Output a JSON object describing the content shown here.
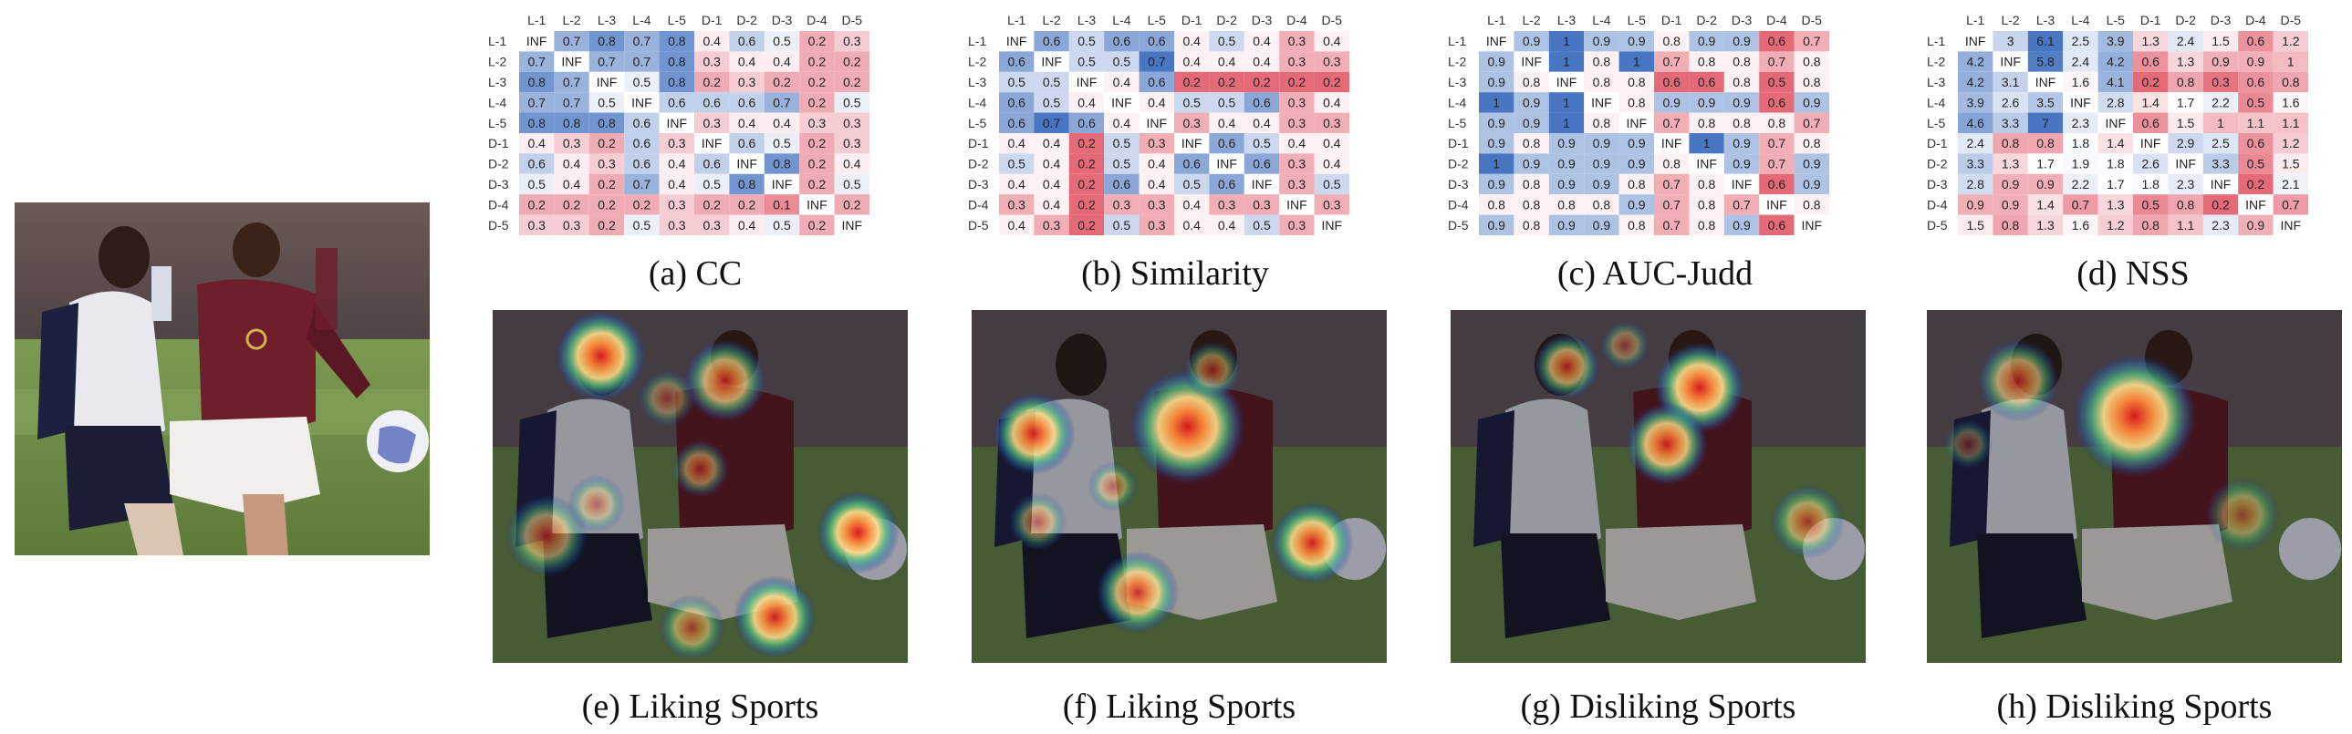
{
  "labels": [
    "L-1",
    "L-2",
    "L-3",
    "L-4",
    "L-5",
    "D-1",
    "D-2",
    "D-3",
    "D-4",
    "D-5"
  ],
  "scales": {
    "CC": {
      "lo": 0.0,
      "mid": 0.45,
      "hi": 0.9
    },
    "Similarity": {
      "lo": 0.2,
      "mid": 0.42,
      "hi": 0.7
    },
    "AUC-Judd": {
      "lo": 0.6,
      "mid": 0.82,
      "hi": 1.0
    },
    "NSS": {
      "lo": 0.2,
      "mid": 1.7,
      "hi": 6.0
    }
  },
  "colors": {
    "high": "#3f6fbf",
    "mid": "#ffffff",
    "low": "#e05060",
    "diag": "#ffffff"
  },
  "matrices": [
    {
      "caption": "(a) CC",
      "metric": "CC",
      "cells": [
        [
          "INF",
          "0.7",
          "0.8",
          "0.7",
          "0.8",
          "0.4",
          "0.6",
          "0.5",
          "0.2",
          "0.3"
        ],
        [
          "0.7",
          "INF",
          "0.7",
          "0.7",
          "0.8",
          "0.3",
          "0.4",
          "0.4",
          "0.2",
          "0.2"
        ],
        [
          "0.8",
          "0.7",
          "INF",
          "0.5",
          "0.8",
          "0.2",
          "0.3",
          "0.2",
          "0.2",
          "0.2"
        ],
        [
          "0.7",
          "0.7",
          "0.5",
          "INF",
          "0.6",
          "0.6",
          "0.6",
          "0.7",
          "0.2",
          "0.5"
        ],
        [
          "0.8",
          "0.8",
          "0.8",
          "0.6",
          "INF",
          "0.3",
          "0.4",
          "0.4",
          "0.3",
          "0.3"
        ],
        [
          "0.4",
          "0.3",
          "0.2",
          "0.6",
          "0.3",
          "INF",
          "0.6",
          "0.5",
          "0.2",
          "0.3"
        ],
        [
          "0.6",
          "0.4",
          "0.3",
          "0.6",
          "0.4",
          "0.6",
          "INF",
          "0.8",
          "0.2",
          "0.4"
        ],
        [
          "0.5",
          "0.4",
          "0.2",
          "0.7",
          "0.4",
          "0.5",
          "0.8",
          "INF",
          "0.2",
          "0.5"
        ],
        [
          "0.2",
          "0.2",
          "0.2",
          "0.2",
          "0.3",
          "0.2",
          "0.2",
          "0.1",
          "INF",
          "0.2"
        ],
        [
          "0.3",
          "0.3",
          "0.2",
          "0.5",
          "0.3",
          "0.3",
          "0.4",
          "0.5",
          "0.2",
          "INF"
        ]
      ]
    },
    {
      "caption": "(b) Similarity",
      "metric": "Similarity",
      "cells": [
        [
          "INF",
          "0.6",
          "0.5",
          "0.6",
          "0.6",
          "0.4",
          "0.5",
          "0.4",
          "0.3",
          "0.4"
        ],
        [
          "0.6",
          "INF",
          "0.5",
          "0.5",
          "0.7",
          "0.4",
          "0.4",
          "0.4",
          "0.3",
          "0.3"
        ],
        [
          "0.5",
          "0.5",
          "INF",
          "0.4",
          "0.6",
          "0.2",
          "0.2",
          "0.2",
          "0.2",
          "0.2"
        ],
        [
          "0.6",
          "0.5",
          "0.4",
          "INF",
          "0.4",
          "0.5",
          "0.5",
          "0.6",
          "0.3",
          "0.4"
        ],
        [
          "0.6",
          "0.7",
          "0.6",
          "0.4",
          "INF",
          "0.3",
          "0.4",
          "0.4",
          "0.3",
          "0.3"
        ],
        [
          "0.4",
          "0.4",
          "0.2",
          "0.5",
          "0.3",
          "INF",
          "0.6",
          "0.5",
          "0.4",
          "0.4"
        ],
        [
          "0.5",
          "0.4",
          "0.2",
          "0.5",
          "0.4",
          "0.6",
          "INF",
          "0.6",
          "0.3",
          "0.4"
        ],
        [
          "0.4",
          "0.4",
          "0.2",
          "0.6",
          "0.4",
          "0.5",
          "0.6",
          "INF",
          "0.3",
          "0.5"
        ],
        [
          "0.3",
          "0.4",
          "0.2",
          "0.3",
          "0.3",
          "0.4",
          "0.3",
          "0.3",
          "INF",
          "0.3"
        ],
        [
          "0.4",
          "0.3",
          "0.2",
          "0.5",
          "0.3",
          "0.4",
          "0.4",
          "0.5",
          "0.3",
          "INF"
        ]
      ]
    },
    {
      "caption": "(c) AUC-Judd",
      "metric": "AUC-Judd",
      "cells": [
        [
          "INF",
          "0.9",
          "1",
          "0.9",
          "0.9",
          "0.8",
          "0.9",
          "0.9",
          "0.6",
          "0.7"
        ],
        [
          "0.9",
          "INF",
          "1",
          "0.8",
          "1",
          "0.7",
          "0.8",
          "0.8",
          "0.7",
          "0.8"
        ],
        [
          "0.9",
          "0.8",
          "INF",
          "0.8",
          "0.8",
          "0.6",
          "0.6",
          "0.8",
          "0.5",
          "0.8"
        ],
        [
          "1",
          "0.9",
          "1",
          "INF",
          "0.8",
          "0.9",
          "0.9",
          "0.9",
          "0.6",
          "0.9"
        ],
        [
          "0.9",
          "0.9",
          "1",
          "0.8",
          "INF",
          "0.7",
          "0.8",
          "0.8",
          "0.8",
          "0.7"
        ],
        [
          "0.9",
          "0.8",
          "0.9",
          "0.9",
          "0.9",
          "INF",
          "1",
          "0.9",
          "0.7",
          "0.8"
        ],
        [
          "1",
          "0.9",
          "0.9",
          "0.9",
          "0.9",
          "0.8",
          "INF",
          "0.9",
          "0.7",
          "0.9"
        ],
        [
          "0.9",
          "0.8",
          "0.9",
          "0.9",
          "0.8",
          "0.7",
          "0.8",
          "INF",
          "0.6",
          "0.9"
        ],
        [
          "0.8",
          "0.8",
          "0.8",
          "0.8",
          "0.9",
          "0.7",
          "0.8",
          "0.7",
          "INF",
          "0.8"
        ],
        [
          "0.9",
          "0.8",
          "0.9",
          "0.9",
          "0.8",
          "0.7",
          "0.8",
          "0.9",
          "0.6",
          "INF"
        ]
      ]
    },
    {
      "caption": "(d) NSS",
      "metric": "NSS",
      "cells": [
        [
          "INF",
          "3",
          "6.1",
          "2.5",
          "3.9",
          "1.3",
          "2.4",
          "1.5",
          "0.6",
          "1.2"
        ],
        [
          "4.2",
          "INF",
          "5.8",
          "2.4",
          "4.2",
          "0.6",
          "1.3",
          "0.9",
          "0.9",
          "1"
        ],
        [
          "4.2",
          "3.1",
          "INF",
          "1.6",
          "4.1",
          "0.2",
          "0.8",
          "0.3",
          "0.6",
          "0.8"
        ],
        [
          "3.9",
          "2.6",
          "3.5",
          "INF",
          "2.8",
          "1.4",
          "1.7",
          "2.2",
          "0.5",
          "1.6"
        ],
        [
          "4.6",
          "3.3",
          "7",
          "2.3",
          "INF",
          "0.6",
          "1.5",
          "1",
          "1.1",
          "1.1"
        ],
        [
          "2.4",
          "0.8",
          "0.8",
          "1.8",
          "1.4",
          "INF",
          "2.9",
          "2.5",
          "0.6",
          "1.2"
        ],
        [
          "3.3",
          "1.3",
          "1.7",
          "1.9",
          "1.8",
          "2.6",
          "INF",
          "3.3",
          "0.5",
          "1.5"
        ],
        [
          "2.8",
          "0.9",
          "0.9",
          "2.2",
          "1.7",
          "1.8",
          "2.3",
          "INF",
          "0.2",
          "2.1"
        ],
        [
          "0.9",
          "0.9",
          "1.4",
          "0.7",
          "1.3",
          "0.5",
          "0.8",
          "0.2",
          "INF",
          "0.7"
        ],
        [
          "1.5",
          "0.8",
          "1.3",
          "1.6",
          "1.2",
          "0.8",
          "1.1",
          "2.3",
          "0.9",
          "INF"
        ]
      ]
    }
  ],
  "heatmaps": [
    {
      "caption": "(e) Liking Sports",
      "spots": [
        [
          0.26,
          0.13,
          0.11,
          1.0
        ],
        [
          0.56,
          0.2,
          0.1,
          0.75
        ],
        [
          0.88,
          0.63,
          0.1,
          1.0
        ],
        [
          0.68,
          0.87,
          0.1,
          0.95
        ],
        [
          0.13,
          0.64,
          0.1,
          0.6
        ],
        [
          0.5,
          0.45,
          0.07,
          0.5
        ],
        [
          0.25,
          0.55,
          0.07,
          0.45
        ],
        [
          0.48,
          0.9,
          0.08,
          0.55
        ],
        [
          0.42,
          0.25,
          0.07,
          0.4
        ]
      ]
    },
    {
      "caption": "(f) Liking Sports",
      "spots": [
        [
          0.52,
          0.33,
          0.14,
          1.0
        ],
        [
          0.15,
          0.35,
          0.1,
          0.95
        ],
        [
          0.82,
          0.66,
          0.1,
          0.95
        ],
        [
          0.4,
          0.8,
          0.1,
          0.85
        ],
        [
          0.16,
          0.6,
          0.07,
          0.5
        ],
        [
          0.34,
          0.5,
          0.06,
          0.45
        ],
        [
          0.58,
          0.17,
          0.07,
          0.5
        ]
      ]
    },
    {
      "caption": "(g) Disliking Sports",
      "spots": [
        [
          0.6,
          0.22,
          0.11,
          1.0
        ],
        [
          0.52,
          0.38,
          0.1,
          0.9
        ],
        [
          0.28,
          0.16,
          0.08,
          0.7
        ],
        [
          0.86,
          0.6,
          0.09,
          0.6
        ],
        [
          0.42,
          0.1,
          0.06,
          0.4
        ]
      ]
    },
    {
      "caption": "(h) Disliking Sports",
      "spots": [
        [
          0.5,
          0.3,
          0.15,
          1.0
        ],
        [
          0.22,
          0.2,
          0.1,
          0.65
        ],
        [
          0.1,
          0.38,
          0.06,
          0.35
        ],
        [
          0.76,
          0.58,
          0.09,
          0.45
        ]
      ]
    }
  ]
}
